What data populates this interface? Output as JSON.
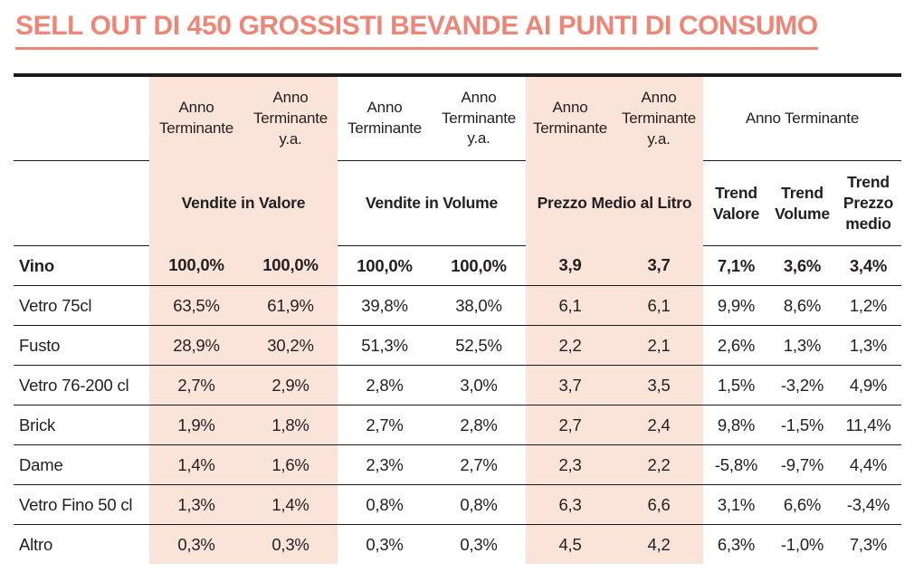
{
  "title": "SELL OUT DI 450 GROSSISTI BEVANDE AI PUNTI DI CONSUMO",
  "colors": {
    "accent": "#ee8678",
    "highlight_bg": "#fae4da",
    "text": "#231f20"
  },
  "table": {
    "header": {
      "sub_cols": [
        "Anno Terminante",
        "Anno Terminante y.a.",
        "Anno Terminante",
        "Anno Terminante y.a.",
        "Anno Terminante",
        "Anno Terminante y.a."
      ],
      "trend_group_label": "Anno Terminante",
      "groups": [
        "Vendite in Valore",
        "Vendite in Volume",
        "Prezzo Medio al Litro"
      ],
      "trend_cols": [
        "Trend Valore",
        "Trend Volume",
        "Trend Prezzo medio"
      ]
    },
    "rows": [
      {
        "label": "Vino",
        "values": [
          "100,0%",
          "100,0%",
          "100,0%",
          "100,0%",
          "3,9",
          "3,7",
          "7,1%",
          "3,6%",
          "3,4%"
        ]
      },
      {
        "label": "Vetro 75cl",
        "values": [
          "63,5%",
          "61,9%",
          "39,8%",
          "38,0%",
          "6,1",
          "6,1",
          "9,9%",
          "8,6%",
          "1,2%"
        ]
      },
      {
        "label": "Fusto",
        "values": [
          "28,9%",
          "30,2%",
          "51,3%",
          "52,5%",
          "2,2",
          "2,1",
          "2,6%",
          "1,3%",
          "1,3%"
        ]
      },
      {
        "label": "Vetro 76-200 cl",
        "values": [
          "2,7%",
          "2,9%",
          "2,8%",
          "3,0%",
          "3,7",
          "3,5",
          "1,5%",
          "-3,2%",
          "4,9%"
        ]
      },
      {
        "label": "Brick",
        "values": [
          "1,9%",
          "1,8%",
          "2,7%",
          "2,8%",
          "2,7",
          "2,4",
          "9,8%",
          "-1,5%",
          "11,4%"
        ]
      },
      {
        "label": "Dame",
        "values": [
          "1,4%",
          "1,6%",
          "2,3%",
          "2,7%",
          "2,3",
          "2,2",
          "-5,8%",
          "-9,7%",
          "4,4%"
        ]
      },
      {
        "label": "Vetro Fino 50 cl",
        "values": [
          "1,3%",
          "1,4%",
          "0,8%",
          "0,8%",
          "6,3",
          "6,6",
          "3,1%",
          "6,6%",
          "-3,4%"
        ]
      },
      {
        "label": "Altro",
        "values": [
          "0,3%",
          "0,3%",
          "0,3%",
          "0,3%",
          "4,5",
          "4,2",
          "6,3%",
          "-1,0%",
          "7,3%"
        ]
      }
    ]
  }
}
